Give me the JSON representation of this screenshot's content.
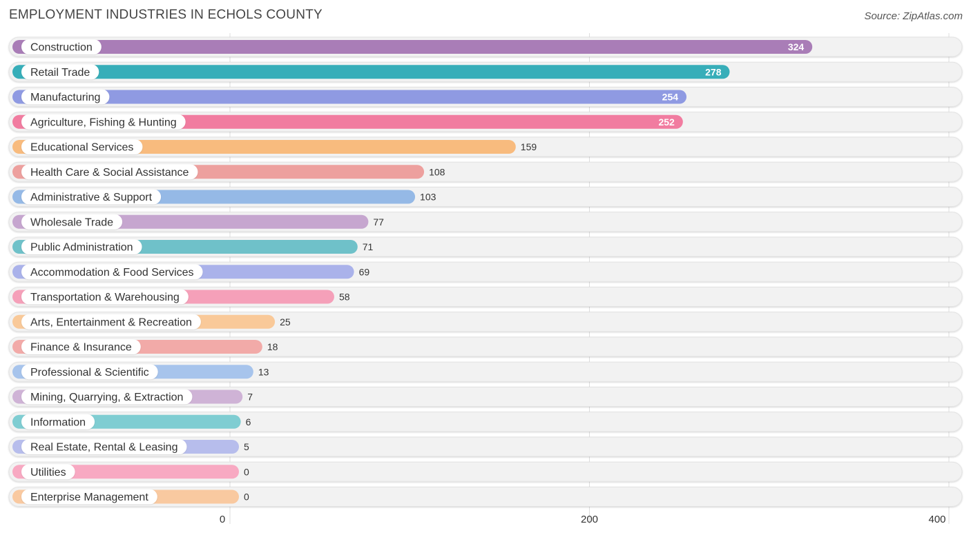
{
  "header": {
    "title": "EMPLOYMENT INDUSTRIES IN ECHOLS COUNTY",
    "source": "Source: ZipAtlas.com"
  },
  "chart_data": {
    "type": "bar",
    "orientation": "horizontal",
    "title": "EMPLOYMENT INDUSTRIES IN ECHOLS COUNTY",
    "xlim": [
      0,
      400
    ],
    "xticks": [
      0,
      200,
      400
    ],
    "categories": [
      "Construction",
      "Retail Trade",
      "Manufacturing",
      "Agriculture, Fishing & Hunting",
      "Educational Services",
      "Health Care & Social Assistance",
      "Administrative & Support",
      "Wholesale Trade",
      "Public Administration",
      "Accommodation & Food Services",
      "Transportation & Warehousing",
      "Arts, Entertainment & Recreation",
      "Finance & Insurance",
      "Professional & Scientific",
      "Mining, Quarrying, & Extraction",
      "Information",
      "Real Estate, Rental & Leasing",
      "Utilities",
      "Enterprise Management"
    ],
    "values": [
      324,
      278,
      254,
      252,
      159,
      108,
      103,
      77,
      71,
      69,
      58,
      25,
      18,
      13,
      7,
      6,
      5,
      0,
      0
    ],
    "colors": [
      "#a97db7",
      "#37aeb9",
      "#8f9ae2",
      "#f17ca0",
      "#f8bb7e",
      "#eda09e",
      "#95b9e6",
      "#c6a6cf",
      "#6fc1c9",
      "#aab2ea",
      "#f5a0b9",
      "#f9c999",
      "#f2aaa8",
      "#a7c4ec",
      "#cfb3d6",
      "#7fcdd2",
      "#b7bdec",
      "#f8a9c2",
      "#f9c9a0"
    ]
  }
}
